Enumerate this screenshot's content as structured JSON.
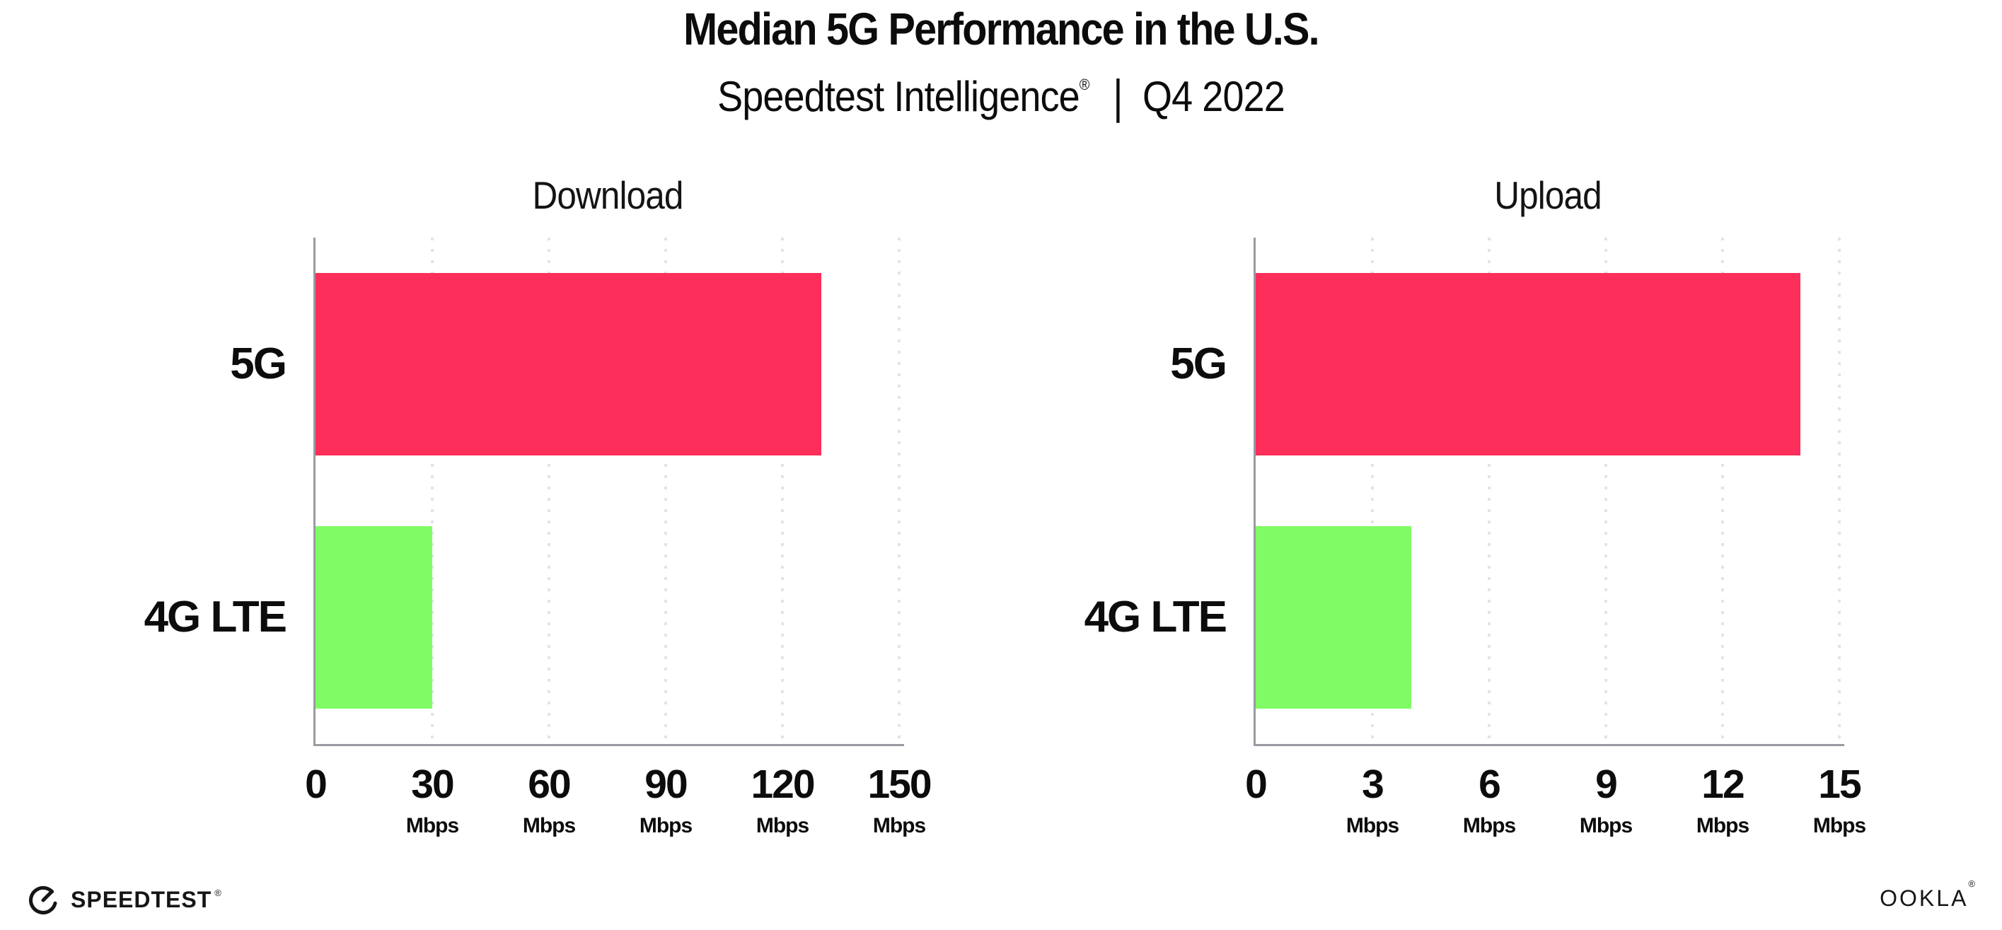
{
  "header": {
    "title": "Median 5G Performance in the U.S.",
    "subtitle_brand": "Speedtest Intelligence",
    "subtitle_reg": "®",
    "subtitle_sep": "|",
    "subtitle_period": "Q4 2022"
  },
  "colors": {
    "bar_5g": "#fd2e5a",
    "bar_4g_lte": "#80fb65",
    "gridline": "#e2e2ec",
    "spine": "#9a9aa2",
    "text": "#0c0c0c"
  },
  "chart_data": [
    {
      "type": "bar",
      "orientation": "horizontal",
      "title": "Download",
      "categories": [
        "5G",
        "4G LTE"
      ],
      "values": [
        130,
        30
      ],
      "series_colors": [
        "#fd2e5a",
        "#80fb65"
      ],
      "unit": "Mbps",
      "xlim": [
        0,
        150
      ],
      "xticks": [
        0,
        30,
        60,
        90,
        120,
        150
      ],
      "tick_unit": "Mbps",
      "grid": "vertical-dotted",
      "legend": "none"
    },
    {
      "type": "bar",
      "orientation": "horizontal",
      "title": "Upload",
      "categories": [
        "5G",
        "4G LTE"
      ],
      "values": [
        14,
        4
      ],
      "series_colors": [
        "#fd2e5a",
        "#80fb65"
      ],
      "unit": "Mbps",
      "xlim": [
        0,
        15
      ],
      "xticks": [
        0,
        3,
        6,
        9,
        12,
        15
      ],
      "tick_unit": "Mbps",
      "grid": "vertical-dotted",
      "legend": "none"
    }
  ],
  "footer": {
    "speedtest_label": "SPEEDTEST",
    "speedtest_mark": "®",
    "ookla_label": "OOKLA",
    "ookla_mark": "®"
  }
}
